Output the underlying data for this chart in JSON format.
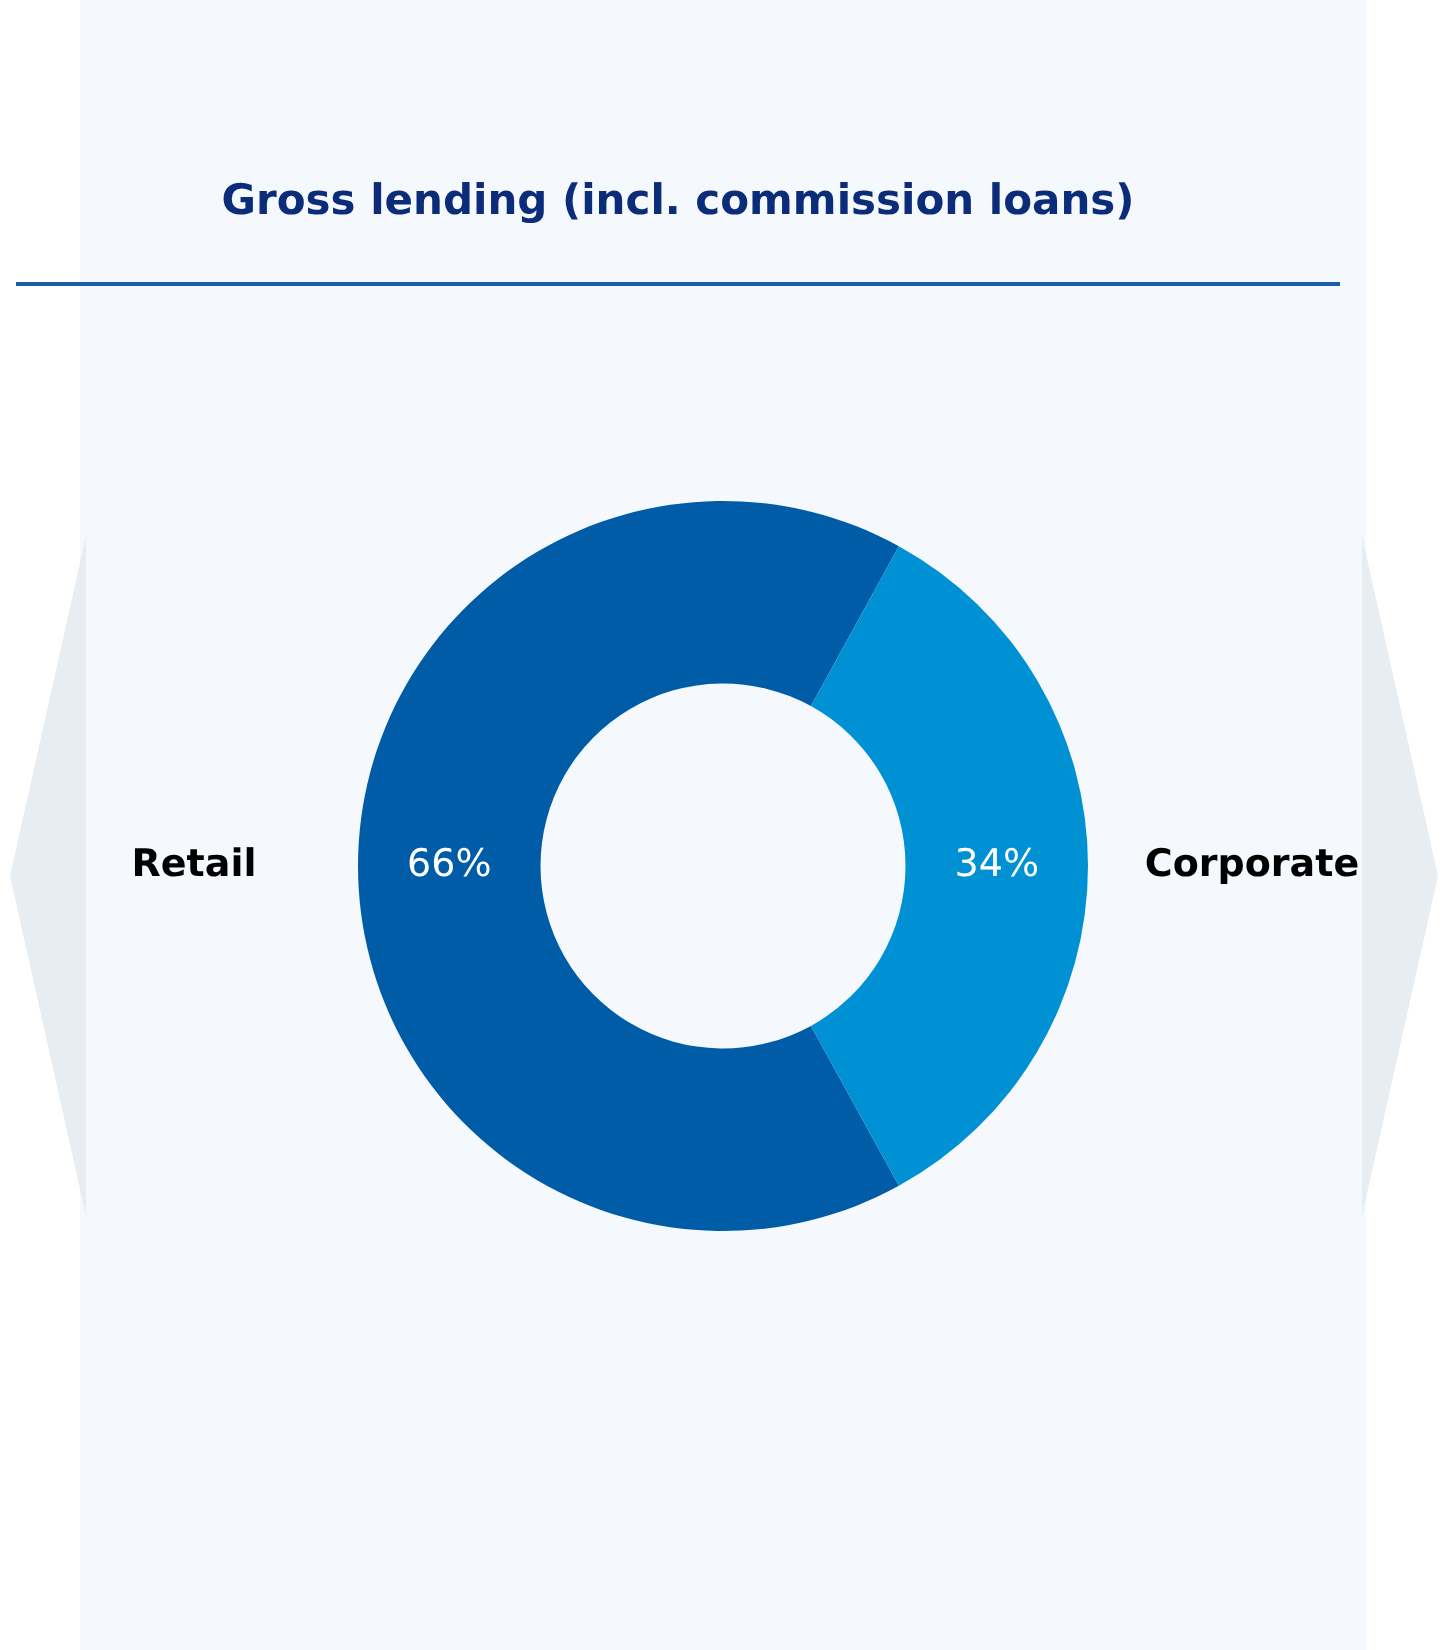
{
  "chart_data": {
    "type": "donut",
    "title": "Gross lending (incl. commission loans)",
    "categories": [
      "Retail",
      "Corporate"
    ],
    "values": [
      66,
      34
    ],
    "colors": [
      "#005ca6",
      "#0090d4"
    ],
    "value_labels": [
      "66%",
      "34%"
    ],
    "legend": false
  }
}
